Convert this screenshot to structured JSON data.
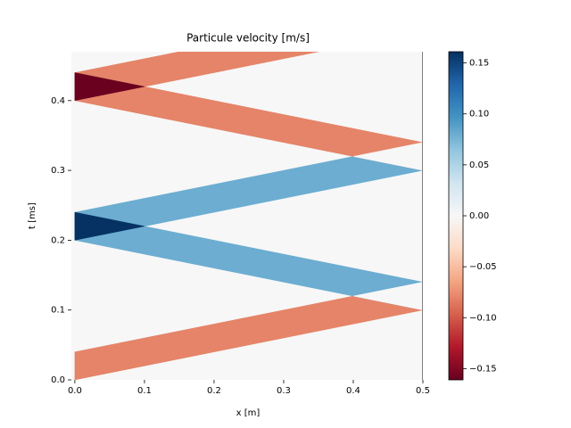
{
  "chart_data": {
    "type": "heatmap",
    "title": "Particule velocity [m/s]",
    "x_label": "x [m]",
    "y_label": "t [ms]",
    "colormap": "RdBu",
    "background_value": 0,
    "xlim": [
      -0.005,
      0.5
    ],
    "ylim": [
      0,
      0.47
    ],
    "xticks": [
      {
        "value": 0,
        "label": "0.0"
      },
      0.1,
      0.2,
      0.3,
      0.4,
      0.5
    ],
    "yticks": [
      {
        "value": 0,
        "label": "0.0"
      },
      0.1,
      0.2,
      0.3,
      0.4
    ],
    "clim": [
      -0.161,
      0.161
    ],
    "cticks": [
      {
        "value": -0.15,
        "label": "−0.15"
      },
      {
        "value": -0.1,
        "label": "−0.10"
      },
      {
        "value": -0.05,
        "label": "−0.05"
      },
      {
        "value": 0,
        "label": "0.00"
      },
      {
        "value": 0.05,
        "label": "0.05"
      },
      {
        "value": 0.1,
        "label": "0.10"
      },
      {
        "value": 0.15,
        "label": "0.15"
      }
    ],
    "regions": [
      {
        "value": -0.08,
        "x": [
          0,
          0.5,
          0.5,
          0
        ],
        "t": [
          0,
          0.1,
          0.14,
          0.04
        ]
      },
      {
        "value": 0.08,
        "x": [
          0.5,
          0,
          0,
          0.5
        ],
        "t": [
          0.1,
          0.2,
          0.24,
          0.14
        ]
      },
      {
        "value": 0,
        "x": [
          0.5,
          0.4,
          0.5
        ],
        "t": [
          0.1,
          0.12,
          0.14
        ]
      },
      {
        "value": 0.08,
        "x": [
          0,
          0.5,
          0.5,
          0
        ],
        "t": [
          0.2,
          0.3,
          0.34,
          0.24
        ]
      },
      {
        "value": 0.16,
        "x": [
          0,
          0.1,
          0
        ],
        "t": [
          0.2,
          0.22,
          0.24
        ]
      },
      {
        "value": -0.08,
        "x": [
          0.5,
          0,
          0,
          0.5
        ],
        "t": [
          0.3,
          0.4,
          0.44,
          0.34
        ]
      },
      {
        "value": 0,
        "x": [
          0.5,
          0.4,
          0.5
        ],
        "t": [
          0.3,
          0.32,
          0.34
        ]
      },
      {
        "value": -0.08,
        "x": [
          0,
          0.5,
          0.5,
          0
        ],
        "t": [
          0.4,
          0.5,
          0.54,
          0.44
        ]
      },
      {
        "value": -0.16,
        "x": [
          0,
          0.1,
          0
        ],
        "t": [
          0.4,
          0.42,
          0.44
        ]
      }
    ],
    "vlines": [
      {
        "x": 0.5,
        "color": "#808080"
      }
    ]
  }
}
